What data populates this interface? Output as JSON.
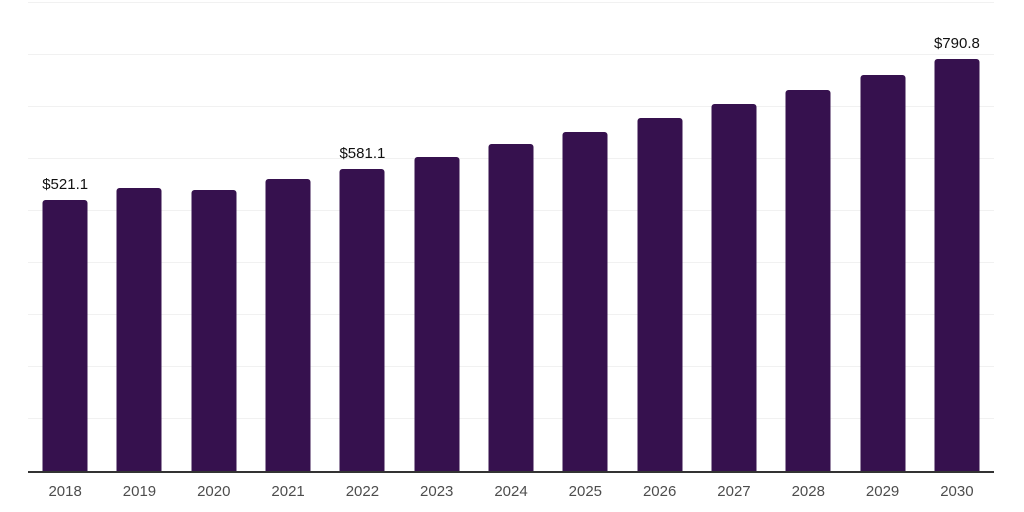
{
  "chart_data": {
    "type": "bar",
    "title": "",
    "xlabel": "",
    "ylabel": "",
    "categories": [
      "2018",
      "2019",
      "2020",
      "2021",
      "2022",
      "2023",
      "2024",
      "2025",
      "2026",
      "2027",
      "2028",
      "2029",
      "2030"
    ],
    "values": [
      521.1,
      543.6,
      539.7,
      561.0,
      581.1,
      603.9,
      627.6,
      652.3,
      677.9,
      704.5,
      732.1,
      760.9,
      790.8
    ],
    "value_labels": {
      "2018": "$521.1",
      "2022": "$581.1",
      "2030": "$790.8"
    },
    "ylim": [
      0,
      903
    ],
    "gridline_step": 100,
    "grid": "horizontal",
    "legend": "none",
    "colors": {
      "bar": "#36114E",
      "axis_line": "#333333",
      "gridline": "#f1f1f1",
      "tick_label": "#4d4d4d",
      "value_label": "#111111",
      "background": "#ffffff"
    }
  }
}
